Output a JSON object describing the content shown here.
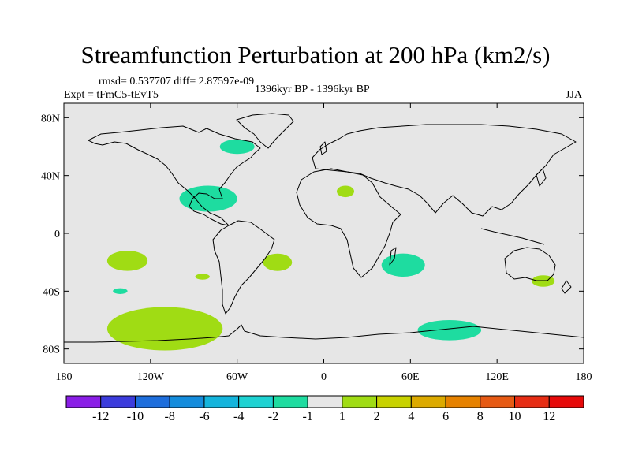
{
  "header": {
    "title": "Streamfunction Perturbation at 200 hPa (km2/s)",
    "stats": "rmsd= 0.537707 diff= 2.87597e-09",
    "experiment": "Expt = tFmC5-tEvT5",
    "period": "1396kyr BP - 1396kyr BP",
    "season": "JJA"
  },
  "chart_data": {
    "type": "filled-contour map",
    "title": "Streamfunction Perturbation at 200 hPa (km2/s)",
    "xlabel": "",
    "ylabel": "",
    "xlim": [
      -180,
      180
    ],
    "ylim": [
      -90,
      90
    ],
    "x_ticks": [
      {
        "value": -180,
        "label": "180"
      },
      {
        "value": -120,
        "label": "120W"
      },
      {
        "value": -60,
        "label": "60W"
      },
      {
        "value": 0,
        "label": "0"
      },
      {
        "value": 60,
        "label": "60E"
      },
      {
        "value": 120,
        "label": "120E"
      },
      {
        "value": 180,
        "label": "180"
      }
    ],
    "y_ticks": [
      {
        "value": 80,
        "label": "80N"
      },
      {
        "value": 40,
        "label": "40N"
      },
      {
        "value": 0,
        "label": "0"
      },
      {
        "value": -40,
        "label": "40S"
      },
      {
        "value": -80,
        "label": "80S"
      }
    ],
    "colorbar": {
      "labels": [
        "-12",
        "-10",
        "-8",
        "-6",
        "-4",
        "-2",
        "-1",
        "1",
        "2",
        "4",
        "6",
        "8",
        "10",
        "12"
      ],
      "colors": [
        "#8a1ee6",
        "#3c3cdc",
        "#1e6edc",
        "#148cdc",
        "#14b4dc",
        "#1ed2d2",
        "#1edca0",
        "#e6e6e6",
        "#a0dc14",
        "#c8d200",
        "#dcaa00",
        "#e68200",
        "#e65a14",
        "#e62d14",
        "#e60a0a"
      ]
    },
    "regions": [
      {
        "name": "North Atlantic / Labrador",
        "lon": -60,
        "lat": 60,
        "rx": 12,
        "ry": 5,
        "level": "-2 to -1",
        "color": "#1edca0"
      },
      {
        "name": "Gulf of Mexico / Caribbean",
        "lon": -80,
        "lat": 24,
        "rx": 20,
        "ry": 9,
        "level": "-2 to -1",
        "color": "#1edca0"
      },
      {
        "name": "North Africa",
        "lon": 15,
        "lat": 29,
        "rx": 6,
        "ry": 4,
        "level": "1 to 2",
        "color": "#a0dc14"
      },
      {
        "name": "South Pacific",
        "lon": -136,
        "lat": -19,
        "rx": 14,
        "ry": 7,
        "level": "1 to 2",
        "color": "#a0dc14"
      },
      {
        "name": "South Atlantic",
        "lon": -32,
        "lat": -20,
        "rx": 10,
        "ry": 6,
        "level": "1 to 2",
        "color": "#a0dc14"
      },
      {
        "name": "Southwest Indian Ocean",
        "lon": 55,
        "lat": -22,
        "rx": 15,
        "ry": 8,
        "level": "-2 to -1",
        "color": "#1edca0"
      },
      {
        "name": "Southeast Pacific",
        "lon": -84,
        "lat": -30,
        "rx": 5,
        "ry": 2,
        "level": "1 to 2",
        "color": "#a0dc14"
      },
      {
        "name": "Tasman Sea",
        "lon": 152,
        "lat": -33,
        "rx": 8,
        "ry": 4,
        "level": "1 to 2",
        "color": "#a0dc14"
      },
      {
        "name": "Southeast Pacific small",
        "lon": -141,
        "lat": -40,
        "rx": 5,
        "ry": 2,
        "level": "-2 to -1",
        "color": "#1edca0"
      },
      {
        "name": "Southern Ocean Pacific sector",
        "lon": -110,
        "lat": -66,
        "rx": 40,
        "ry": 15,
        "level": "1 to 2",
        "color": "#a0dc14"
      },
      {
        "name": "Southern Ocean Indian sector",
        "lon": 87,
        "lat": -67,
        "rx": 22,
        "ry": 7,
        "level": "-2 to -1",
        "color": "#1edca0"
      }
    ]
  }
}
